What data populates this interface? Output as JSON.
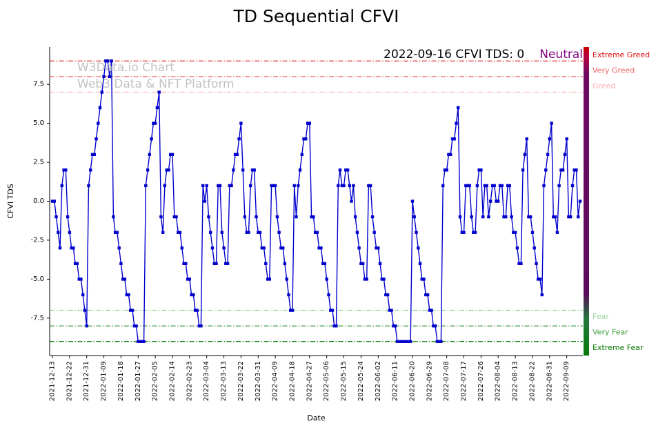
{
  "title": "TD Sequential CFVI",
  "watermark": {
    "line1": "W3Data.io Chart",
    "line2": "Web3 Data & NFT Platform",
    "color": "#c2c2c2"
  },
  "annotation": {
    "text": "2022-09-16 CFVI TDS: 0",
    "status": "Neutral",
    "status_color": "#800080"
  },
  "axes": {
    "x_label": "Date",
    "y_label": "CFVI TDS",
    "y_ticks": [
      -7.5,
      -5.0,
      -2.5,
      0.0,
      2.5,
      5.0,
      7.5
    ],
    "x_tick_labels": [
      "2021-12-13",
      "2021-12-22",
      "2021-12-31",
      "2022-01-09",
      "2022-01-18",
      "2022-01-27",
      "2022-02-05",
      "2022-02-14",
      "2022-02-23",
      "2022-03-04",
      "2022-03-13",
      "2022-03-22",
      "2022-03-31",
      "2022-04-09",
      "2022-04-18",
      "2022-04-27",
      "2022-05-06",
      "2022-05-15",
      "2022-05-24",
      "2022-06-02",
      "2022-06-11",
      "2022-06-20",
      "2022-06-29",
      "2022-07-08",
      "2022-07-17",
      "2022-07-26",
      "2022-08-04",
      "2022-08-13",
      "2022-08-22",
      "2022-08-31",
      "2022-09-09"
    ]
  },
  "thresholds": [
    {
      "label": "Extreme Greed",
      "value": 9,
      "color": "#e01010",
      "label_color": "#e01010"
    },
    {
      "label": "Very Greed",
      "value": 8,
      "color": "#f26666",
      "label_color": "#f26666"
    },
    {
      "label": "Greed",
      "value": 7,
      "color": "#ffb0b0",
      "label_color": "#ffb0b0"
    },
    {
      "label": "Fear",
      "value": -7,
      "color": "#9fd49f",
      "label_color": "#9fd49f"
    },
    {
      "label": "Very Fear",
      "value": -8,
      "color": "#44a044",
      "label_color": "#44a044"
    },
    {
      "label": "Extreme Fear",
      "value": -9,
      "color": "#007700",
      "label_color": "#007700"
    }
  ],
  "colorbar": {
    "stops": [
      [
        "0%",
        "#cc0000"
      ],
      [
        "3%",
        "#b50040"
      ],
      [
        "9%",
        "#6e0a64"
      ],
      [
        "80%",
        "#5c0a5c"
      ],
      [
        "88%",
        "#20773a"
      ],
      [
        "100%",
        "#0a7a0a"
      ]
    ]
  },
  "chart_data": {
    "type": "line",
    "title": "TD Sequential CFVI",
    "xlabel": "Date",
    "ylabel": "CFVI TDS",
    "series_name": "CFVI TDS",
    "x_start": "2021-12-13",
    "x_interval_days": 1,
    "x_end": "2022-09-16",
    "ylim": [
      -9.9,
      9.9
    ],
    "grid": false,
    "legend": "none",
    "line_color": "#0000cd",
    "marker": "square",
    "last_point": {
      "date": "2022-09-16",
      "value": 0,
      "sentiment": "Neutral"
    },
    "values": [
      0,
      0,
      -1,
      -2,
      -3,
      1,
      2,
      2,
      -1,
      -2,
      -3,
      -3,
      -4,
      -4,
      -5,
      -5,
      -6,
      -7,
      -8,
      1,
      2,
      3,
      3,
      4,
      5,
      6,
      7,
      8,
      9,
      9,
      8,
      9,
      -1,
      -2,
      -2,
      -3,
      -4,
      -5,
      -5,
      -6,
      -6,
      -7,
      -7,
      -8,
      -8,
      -9,
      -9,
      -9,
      -9,
      1,
      2,
      3,
      4,
      5,
      5,
      6,
      7,
      -1,
      -2,
      1,
      2,
      2,
      3,
      3,
      -1,
      -1,
      -2,
      -2,
      -3,
      -4,
      -4,
      -5,
      -5,
      -6,
      -6,
      -7,
      -7,
      -8,
      -8,
      1,
      0,
      1,
      -1,
      -2,
      -3,
      -4,
      -4,
      1,
      1,
      -2,
      -3,
      -4,
      -4,
      1,
      1,
      2,
      3,
      3,
      4,
      5,
      2,
      -1,
      -2,
      -2,
      1,
      2,
      2,
      -1,
      -2,
      -2,
      -3,
      -3,
      -4,
      -5,
      -5,
      1,
      1,
      1,
      -1,
      -2,
      -3,
      -3,
      -4,
      -5,
      -6,
      -7,
      -7,
      1,
      -1,
      1,
      2,
      3,
      4,
      4,
      5,
      5,
      -1,
      -1,
      -2,
      -2,
      -3,
      -3,
      -4,
      -4,
      -5,
      -6,
      -7,
      -7,
      -8,
      -8,
      1,
      2,
      1,
      1,
      2,
      2,
      1,
      0,
      1,
      -1,
      -2,
      -3,
      -4,
      -4,
      -5,
      -5,
      1,
      1,
      -1,
      -2,
      -3,
      -3,
      -4,
      -5,
      -5,
      -6,
      -6,
      -7,
      -7,
      -8,
      -8,
      -9,
      -9,
      -9,
      -9,
      -9,
      -9,
      -9,
      -9,
      0,
      -1,
      -2,
      -3,
      -4,
      -5,
      -5,
      -6,
      -6,
      -7,
      -7,
      -8,
      -8,
      -9,
      -9,
      -9,
      1,
      2,
      2,
      3,
      3,
      4,
      4,
      5,
      6,
      -1,
      -2,
      -2,
      1,
      1,
      1,
      -1,
      -2,
      -2,
      1,
      2,
      2,
      -1,
      1,
      1,
      -1,
      0,
      1,
      1,
      0,
      0,
      1,
      1,
      -1,
      -1,
      1,
      1,
      -1,
      -2,
      -2,
      -3,
      -4,
      -4,
      2,
      3,
      4,
      -1,
      -1,
      -2,
      -3,
      -4,
      -5,
      -5,
      -6,
      1,
      2,
      3,
      4,
      5,
      -1,
      -1,
      -2,
      1,
      2,
      2,
      3,
      4,
      -1,
      -1,
      1,
      2,
      2,
      -1,
      0
    ]
  }
}
